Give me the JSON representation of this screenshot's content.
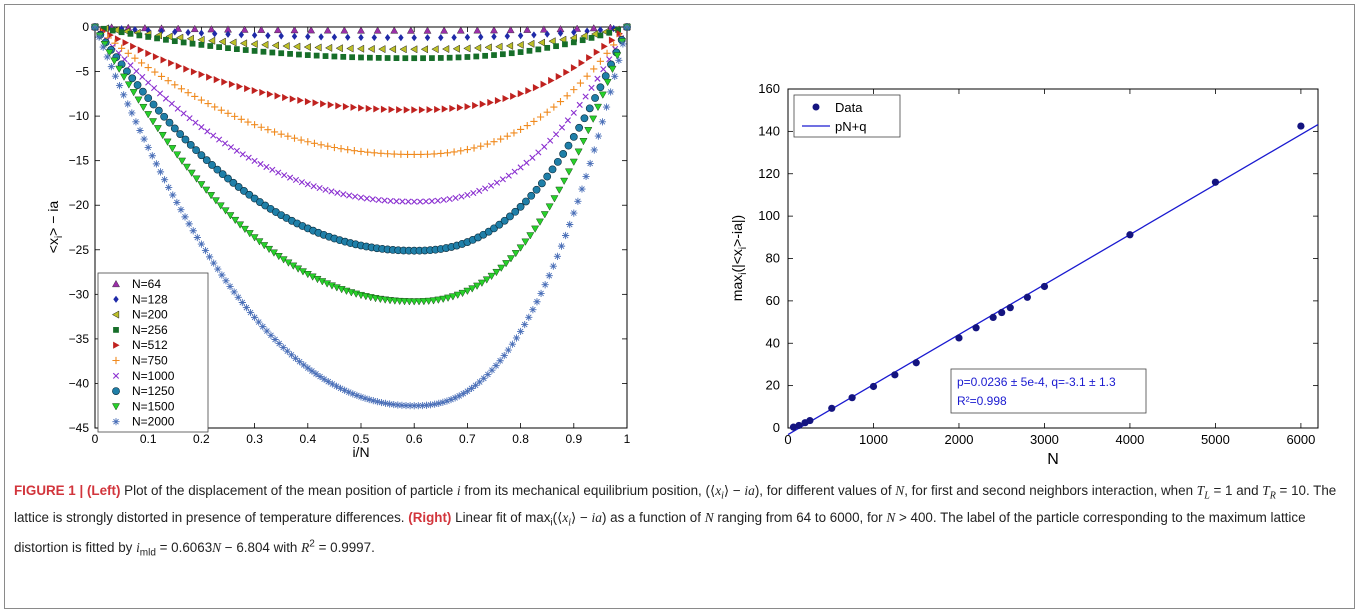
{
  "chart_data": [
    {
      "type": "scatter",
      "panel": "left",
      "xlabel": "i/N",
      "ylabel": "<x_i> − ia",
      "xlim": [
        0,
        1
      ],
      "ylim": [
        -45,
        0
      ],
      "xticks": [
        "0",
        "0.1",
        "0.2",
        "0.3",
        "0.4",
        "0.5",
        "0.6",
        "0.7",
        "0.8",
        "0.9",
        "1"
      ],
      "yticks": [
        "0",
        "−5",
        "−10",
        "−15",
        "−20",
        "−25",
        "−30",
        "−35",
        "−40",
        "−45"
      ],
      "legend_position": "lower-left",
      "series": [
        {
          "name": "N=64",
          "color": "#9b2fa8",
          "marker": "triangle-up",
          "min_value": -0.4
        },
        {
          "name": "N=128",
          "color": "#1f2aa8",
          "marker": "diamond",
          "min_value": -1.2
        },
        {
          "name": "N=200",
          "color": "#bcbf28",
          "marker": "triangle-left",
          "min_value": -2.5
        },
        {
          "name": "N=256",
          "color": "#166e29",
          "marker": "square",
          "min_value": -3.5
        },
        {
          "name": "N=512",
          "color": "#c0221f",
          "marker": "triangle-right",
          "min_value": -9.3
        },
        {
          "name": "N=750",
          "color": "#f08a1e",
          "marker": "plus",
          "min_value": -14.3
        },
        {
          "name": "N=1000",
          "color": "#8a2fd0",
          "marker": "x",
          "min_value": -19.6
        },
        {
          "name": "N=1250",
          "color": "#1f7fa8",
          "marker": "circle",
          "min_value": -25.1
        },
        {
          "name": "N=1500",
          "color": "#27d12a",
          "marker": "triangle-down",
          "min_value": -30.8
        },
        {
          "name": "N=2000",
          "color": "#4a6fb8",
          "marker": "asterisk",
          "min_value": -42.5
        }
      ]
    },
    {
      "type": "scatter",
      "panel": "right",
      "xlabel": "N",
      "ylabel": "max_i(|<x_i>-ia|)",
      "xlim": [
        0,
        6200
      ],
      "ylim": [
        0,
        160
      ],
      "xticks": [
        "0",
        "1000",
        "2000",
        "3000",
        "4000",
        "5000",
        "6000"
      ],
      "yticks": [
        "0",
        "20",
        "40",
        "60",
        "80",
        "100",
        "120",
        "140",
        "160"
      ],
      "legend_position": "top-left",
      "series": [
        {
          "name": "Data",
          "marker": "circle",
          "color": "#141480",
          "x": [
            64,
            128,
            200,
            256,
            512,
            750,
            1000,
            1250,
            1500,
            2000,
            2200,
            2400,
            2500,
            2600,
            2800,
            3000,
            4000,
            5000,
            6000
          ],
          "y": [
            0.4,
            1.2,
            2.5,
            3.5,
            9.3,
            14.3,
            19.6,
            25.1,
            30.8,
            42.5,
            47.3,
            52.2,
            54.5,
            56.8,
            61.7,
            66.8,
            91.2,
            116.0,
            142.5
          ]
        },
        {
          "name": "pN+q",
          "type": "line",
          "color": "#1a1ad0",
          "p": 0.0236,
          "q": -3.1
        }
      ],
      "annotation": {
        "line1": "p=0.0236 ± 5e-4, q=-3.1 ± 1.3",
        "line2": "R²=0.998"
      }
    }
  ],
  "caption": {
    "figure_label": "FIGURE 1 |",
    "left_label": "(Left)",
    "right_label": "(Right)"
  }
}
